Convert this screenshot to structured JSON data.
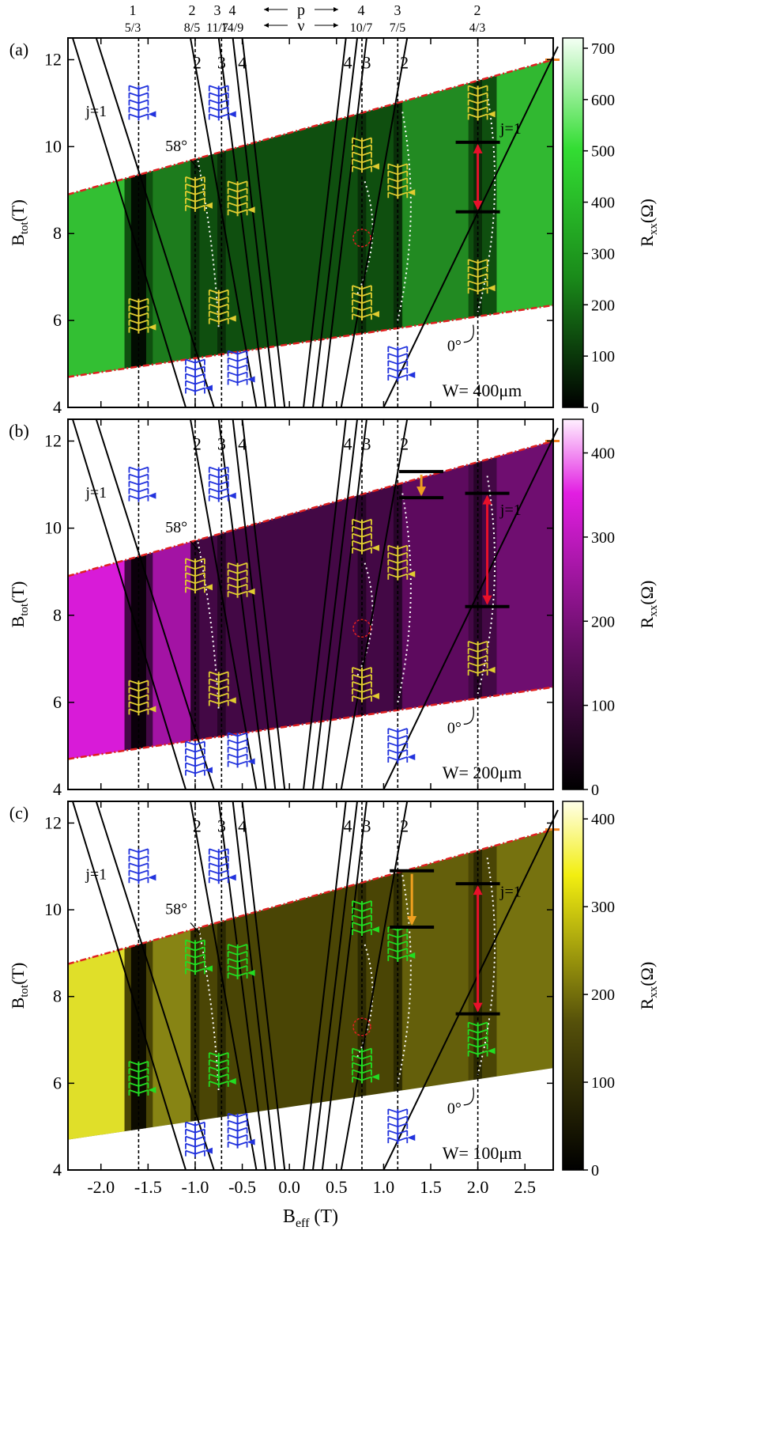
{
  "figure": {
    "top_labels": {
      "p_row": [
        "1",
        "2",
        "3",
        "4",
        "4",
        "3",
        "2"
      ],
      "nu_row": [
        "5/3",
        "8/5",
        "11/7",
        "14/9",
        "10/7",
        "7/5",
        "4/3"
      ],
      "p_symbol": "p",
      "nu_symbol": "ν"
    },
    "xlabel_main": "B",
    "xlabel_sub": "eff",
    "xlabel_unit": " (T)",
    "ylabel_main": "B",
    "ylabel_sub": "tot",
    "ylabel_unit": "(T)",
    "cb_label_main": "R",
    "cb_label_sub": "xx",
    "cb_label_unit": "(Ω)",
    "angle_high": "58°",
    "angle_low": "0°",
    "jlabel": "j=1",
    "line_labels": [
      "2",
      "3",
      "4",
      "4",
      "3",
      "2"
    ],
    "colors": {
      "green_map": "#2ecc2e",
      "purple_map": "#d31fd3",
      "yellow_map": "#f2f21a",
      "red_dash": "#e02020",
      "arrow_red": "#e8102a",
      "arrow_orange": "#f0a020",
      "comb_blue": "#2233dd",
      "comb_yellow": "#e0cc30",
      "comb_green": "#22dd22",
      "marker_orange": "#f08020"
    }
  },
  "chart_data": [
    {
      "panel": "(a)",
      "type": "heatmap",
      "width_label": "W= 400μm",
      "xlim": [
        -2.35,
        2.8
      ],
      "ylim": [
        4,
        12.5
      ],
      "xticks": [
        -2.0,
        -1.5,
        -1.0,
        -0.5,
        0.0,
        0.5,
        1.0,
        1.5,
        2.0,
        2.5
      ],
      "yticks": [
        4,
        6,
        8,
        10,
        12
      ],
      "colorbar": {
        "range": [
          0,
          720
        ],
        "ticks": [
          0,
          100,
          200,
          300,
          400,
          500,
          600,
          700
        ]
      },
      "dip_columns_Beff": [
        -1.6,
        -1.0,
        -0.72,
        0.77,
        1.15,
        2.0
      ],
      "arrows": [
        {
          "color": "red",
          "x": 2.0,
          "y_from": 10.1,
          "y_to": 8.5
        }
      ]
    },
    {
      "panel": "(b)",
      "type": "heatmap",
      "width_label": "W= 200μm",
      "xlim": [
        -2.35,
        2.8
      ],
      "ylim": [
        4,
        12.5
      ],
      "xticks": [
        -2.0,
        -1.5,
        -1.0,
        -0.5,
        0.0,
        0.5,
        1.0,
        1.5,
        2.0,
        2.5
      ],
      "yticks": [
        4,
        6,
        8,
        10,
        12
      ],
      "colorbar": {
        "range": [
          0,
          440
        ],
        "ticks": [
          0,
          100,
          200,
          300,
          400
        ]
      },
      "dip_columns_Beff": [
        -1.6,
        -1.0,
        -0.72,
        0.77,
        1.15,
        2.0
      ],
      "arrows": [
        {
          "color": "orange",
          "x": 1.4,
          "y_from": 11.3,
          "y_to": 10.7
        },
        {
          "color": "red",
          "x": 2.1,
          "y_from": 10.8,
          "y_to": 8.2
        }
      ]
    },
    {
      "panel": "(c)",
      "type": "heatmap",
      "width_label": "W= 100μm",
      "xlim": [
        -2.35,
        2.8
      ],
      "ylim": [
        4,
        12.5
      ],
      "xticks": [
        -2.0,
        -1.5,
        -1.0,
        -0.5,
        0.0,
        0.5,
        1.0,
        1.5,
        2.0,
        2.5
      ],
      "yticks": [
        4,
        6,
        8,
        10,
        12
      ],
      "colorbar": {
        "range": [
          0,
          420
        ],
        "ticks": [
          0,
          100,
          200,
          300,
          400
        ]
      },
      "dip_columns_Beff": [
        -1.6,
        -1.0,
        -0.72,
        0.77,
        1.15,
        2.0
      ],
      "arrows": [
        {
          "color": "orange",
          "x": 1.3,
          "y_from": 10.9,
          "y_to": 9.6
        },
        {
          "color": "red",
          "x": 2.0,
          "y_from": 10.6,
          "y_to": 7.6
        }
      ]
    }
  ]
}
